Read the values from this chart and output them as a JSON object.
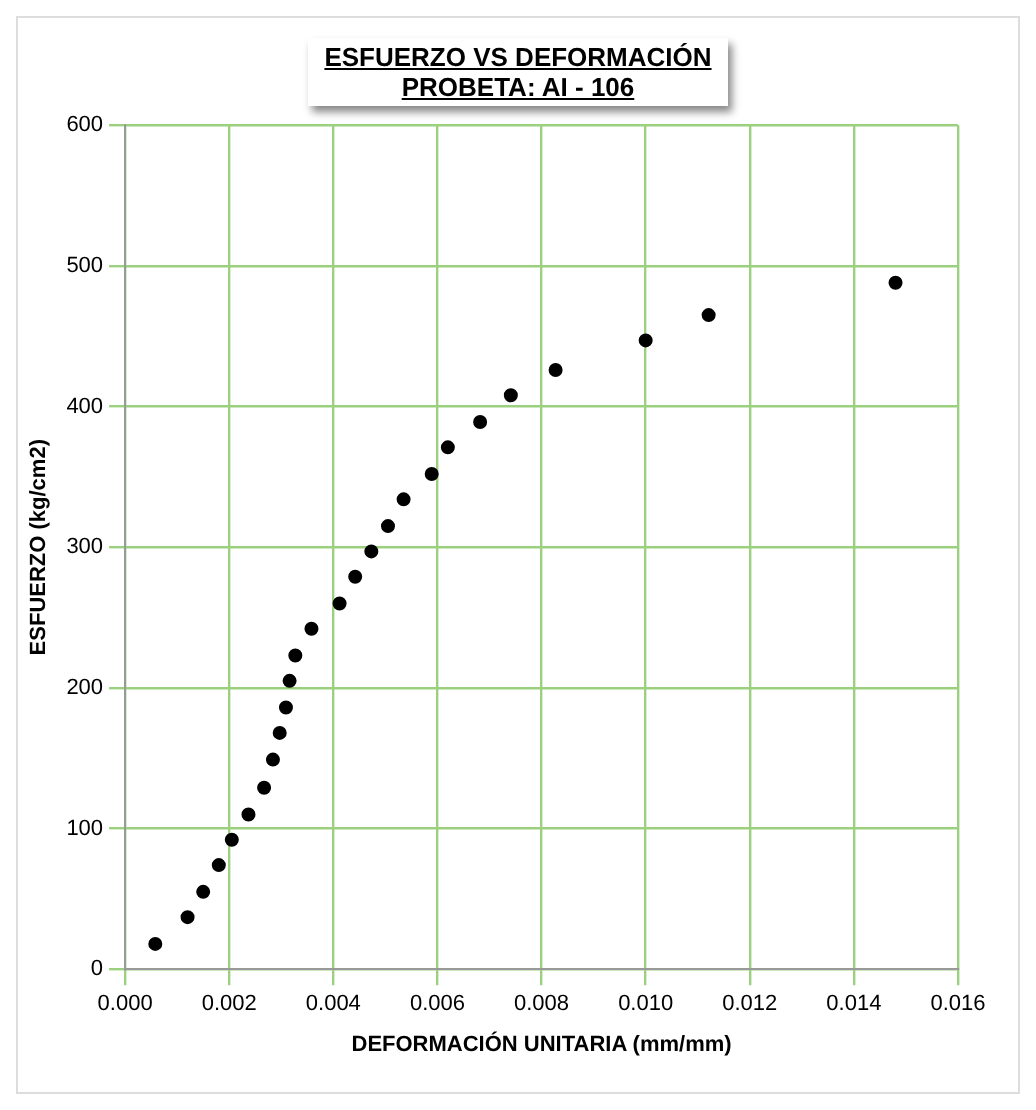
{
  "chart_data": {
    "type": "scatter",
    "title": "ESFUERZO  VS DEFORMACIÓN",
    "subtitle": "PROBETA:  AI - 106",
    "xlabel": "DEFORMACIÓN UNITARIA (mm/mm)",
    "ylabel": "ESFUERZO (kg/cm2)",
    "x": [
      0.00058,
      0.0012,
      0.0015,
      0.0018,
      0.00205,
      0.00237,
      0.00267,
      0.00284,
      0.00297,
      0.00309,
      0.00316,
      0.00327,
      0.00358,
      0.00412,
      0.00442,
      0.00473,
      0.00505,
      0.00535,
      0.00589,
      0.0062,
      0.00682,
      0.00741,
      0.00827,
      0.01,
      0.01121,
      0.0148
    ],
    "values": [
      18,
      37,
      55,
      74,
      92,
      110,
      129,
      149,
      168,
      186,
      205,
      223,
      242,
      260,
      279,
      297,
      315,
      334,
      352,
      371,
      389,
      408,
      426,
      447,
      465,
      488
    ],
    "color": "#000000",
    "marker": "circle",
    "grid": true,
    "xlim": [
      0,
      0.016
    ],
    "xticks": [
      {
        "value": 0,
        "label": "0.000"
      },
      {
        "value": 0.002,
        "label": "0.002"
      },
      {
        "value": 0.004,
        "label": "0.004"
      },
      {
        "value": 0.006,
        "label": "0.006"
      },
      {
        "value": 0.008,
        "label": "0.008"
      },
      {
        "value": 0.01,
        "label": "0.010"
      },
      {
        "value": 0.012,
        "label": "0.012"
      },
      {
        "value": 0.014,
        "label": "0.014"
      },
      {
        "value": 0.016,
        "label": "0.016"
      }
    ],
    "ylim": [
      0,
      600
    ],
    "yticks": [
      0,
      100,
      200,
      300,
      400,
      500,
      600
    ]
  }
}
